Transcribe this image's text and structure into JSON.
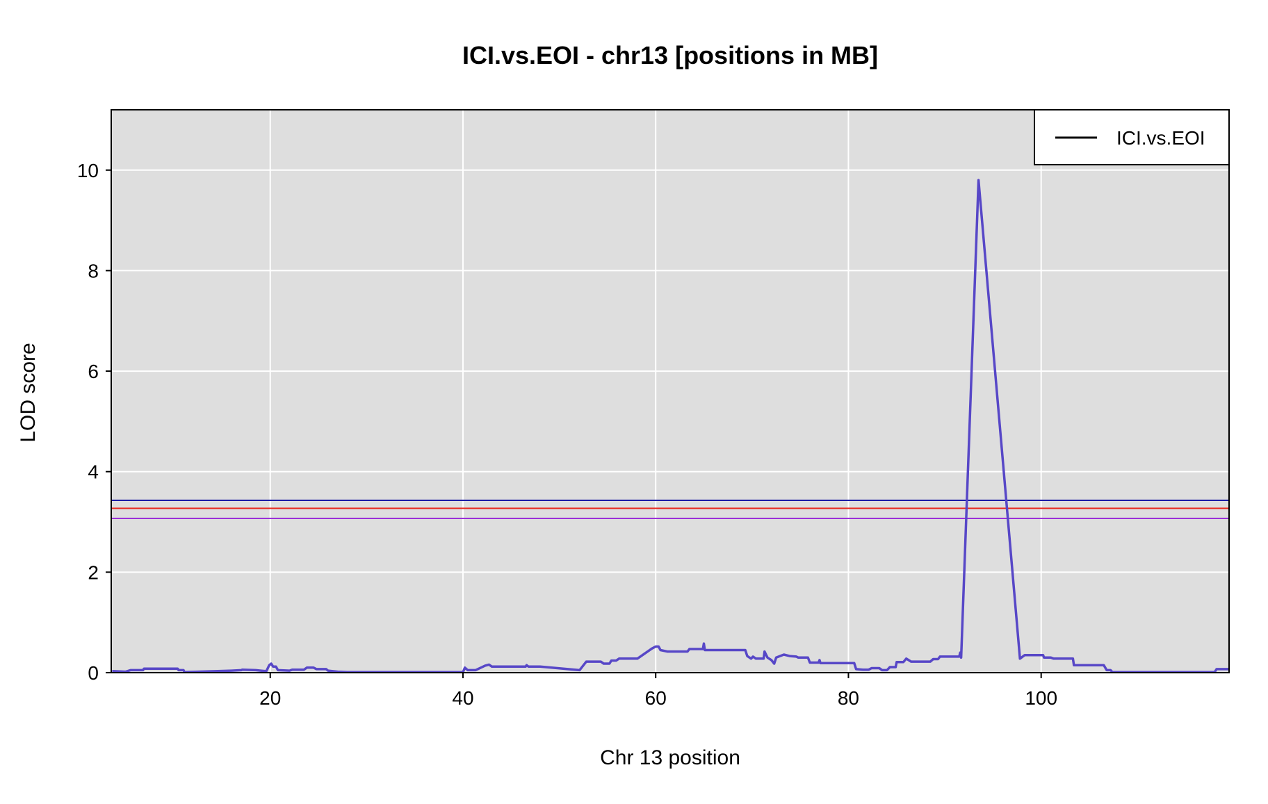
{
  "chart_data": {
    "type": "line",
    "title": "ICI.vs.EOI - chr13 [positions in MB]",
    "xlabel": "Chr 13 position",
    "ylabel": "LOD score",
    "xlim": [
      3.5,
      119.5
    ],
    "ylim": [
      0,
      11.2
    ],
    "x_ticks": [
      20,
      40,
      60,
      80,
      100
    ],
    "y_ticks": [
      0,
      2,
      4,
      6,
      8,
      10
    ],
    "grid": true,
    "background": "#dedede",
    "legend": {
      "position": "top-right",
      "entries": [
        "ICI.vs.EOI"
      ]
    },
    "thresholds": [
      {
        "value": 3.43,
        "color": "#1a1aa6"
      },
      {
        "value": 3.27,
        "color": "#e8241c"
      },
      {
        "value": 3.07,
        "color": "#9b30d9"
      }
    ],
    "series": [
      {
        "name": "ICI.vs.EOI",
        "color": "#5747c7",
        "points": [
          [
            3.6,
            0.03
          ],
          [
            5.0,
            0.02
          ],
          [
            5.5,
            0.05
          ],
          [
            6.8,
            0.05
          ],
          [
            6.9,
            0.08
          ],
          [
            10.4,
            0.08
          ],
          [
            10.5,
            0.05
          ],
          [
            11.0,
            0.05
          ],
          [
            11.1,
            0.01
          ],
          [
            16.0,
            0.04
          ],
          [
            17.0,
            0.05
          ],
          [
            17.1,
            0.06
          ],
          [
            18.5,
            0.05
          ],
          [
            19.0,
            0.04
          ],
          [
            19.6,
            0.03
          ],
          [
            19.9,
            0.15
          ],
          [
            20.1,
            0.18
          ],
          [
            20.3,
            0.12
          ],
          [
            20.6,
            0.12
          ],
          [
            20.8,
            0.05
          ],
          [
            22.0,
            0.04
          ],
          [
            22.3,
            0.06
          ],
          [
            23.5,
            0.06
          ],
          [
            23.8,
            0.1
          ],
          [
            24.5,
            0.1
          ],
          [
            24.8,
            0.07
          ],
          [
            25.8,
            0.07
          ],
          [
            26.0,
            0.04
          ],
          [
            27.0,
            0.02
          ],
          [
            28.0,
            0.01
          ],
          [
            40.0,
            0.01
          ],
          [
            40.2,
            0.1
          ],
          [
            40.5,
            0.05
          ],
          [
            41.3,
            0.05
          ],
          [
            42.3,
            0.14
          ],
          [
            42.7,
            0.16
          ],
          [
            43.0,
            0.12
          ],
          [
            46.5,
            0.12
          ],
          [
            46.6,
            0.15
          ],
          [
            46.8,
            0.12
          ],
          [
            48.0,
            0.12
          ],
          [
            52.1,
            0.05
          ],
          [
            52.8,
            0.22
          ],
          [
            54.3,
            0.22
          ],
          [
            54.6,
            0.18
          ],
          [
            55.2,
            0.18
          ],
          [
            55.4,
            0.24
          ],
          [
            55.9,
            0.24
          ],
          [
            56.2,
            0.28
          ],
          [
            58.1,
            0.28
          ],
          [
            59.6,
            0.48
          ],
          [
            60.0,
            0.52
          ],
          [
            60.3,
            0.52
          ],
          [
            60.5,
            0.45
          ],
          [
            61.2,
            0.42
          ],
          [
            63.3,
            0.42
          ],
          [
            63.5,
            0.47
          ],
          [
            64.9,
            0.47
          ],
          [
            65.0,
            0.58
          ],
          [
            65.1,
            0.45
          ],
          [
            69.3,
            0.45
          ],
          [
            69.5,
            0.33
          ],
          [
            69.9,
            0.28
          ],
          [
            70.1,
            0.32
          ],
          [
            70.4,
            0.28
          ],
          [
            71.2,
            0.28
          ],
          [
            71.3,
            0.42
          ],
          [
            71.6,
            0.3
          ],
          [
            72.0,
            0.25
          ],
          [
            72.3,
            0.18
          ],
          [
            72.5,
            0.3
          ],
          [
            73.3,
            0.36
          ],
          [
            73.9,
            0.33
          ],
          [
            74.6,
            0.32
          ],
          [
            74.8,
            0.3
          ],
          [
            75.8,
            0.3
          ],
          [
            76.0,
            0.2
          ],
          [
            76.9,
            0.2
          ],
          [
            77.0,
            0.25
          ],
          [
            77.1,
            0.19
          ],
          [
            80.6,
            0.19
          ],
          [
            80.8,
            0.07
          ],
          [
            81.5,
            0.06
          ],
          [
            82.1,
            0.06
          ],
          [
            82.4,
            0.09
          ],
          [
            83.2,
            0.09
          ],
          [
            83.5,
            0.05
          ],
          [
            84.0,
            0.05
          ],
          [
            84.3,
            0.11
          ],
          [
            84.9,
            0.11
          ],
          [
            85.0,
            0.21
          ],
          [
            85.7,
            0.21
          ],
          [
            86.0,
            0.28
          ],
          [
            86.5,
            0.22
          ],
          [
            87.5,
            0.22
          ],
          [
            88.5,
            0.22
          ],
          [
            88.8,
            0.27
          ],
          [
            89.3,
            0.27
          ],
          [
            89.5,
            0.32
          ],
          [
            91.5,
            0.32
          ],
          [
            91.6,
            0.4
          ],
          [
            91.7,
            0.3
          ],
          [
            93.5,
            9.8
          ],
          [
            97.8,
            0.28
          ],
          [
            98.3,
            0.35
          ],
          [
            100.2,
            0.35
          ],
          [
            100.3,
            0.3
          ],
          [
            101.0,
            0.3
          ],
          [
            101.3,
            0.28
          ],
          [
            103.3,
            0.28
          ],
          [
            103.4,
            0.15
          ],
          [
            106.5,
            0.15
          ],
          [
            106.8,
            0.05
          ],
          [
            107.2,
            0.05
          ],
          [
            107.4,
            0.01
          ],
          [
            118.0,
            0.01
          ],
          [
            118.2,
            0.07
          ],
          [
            119.5,
            0.07
          ]
        ]
      }
    ]
  }
}
